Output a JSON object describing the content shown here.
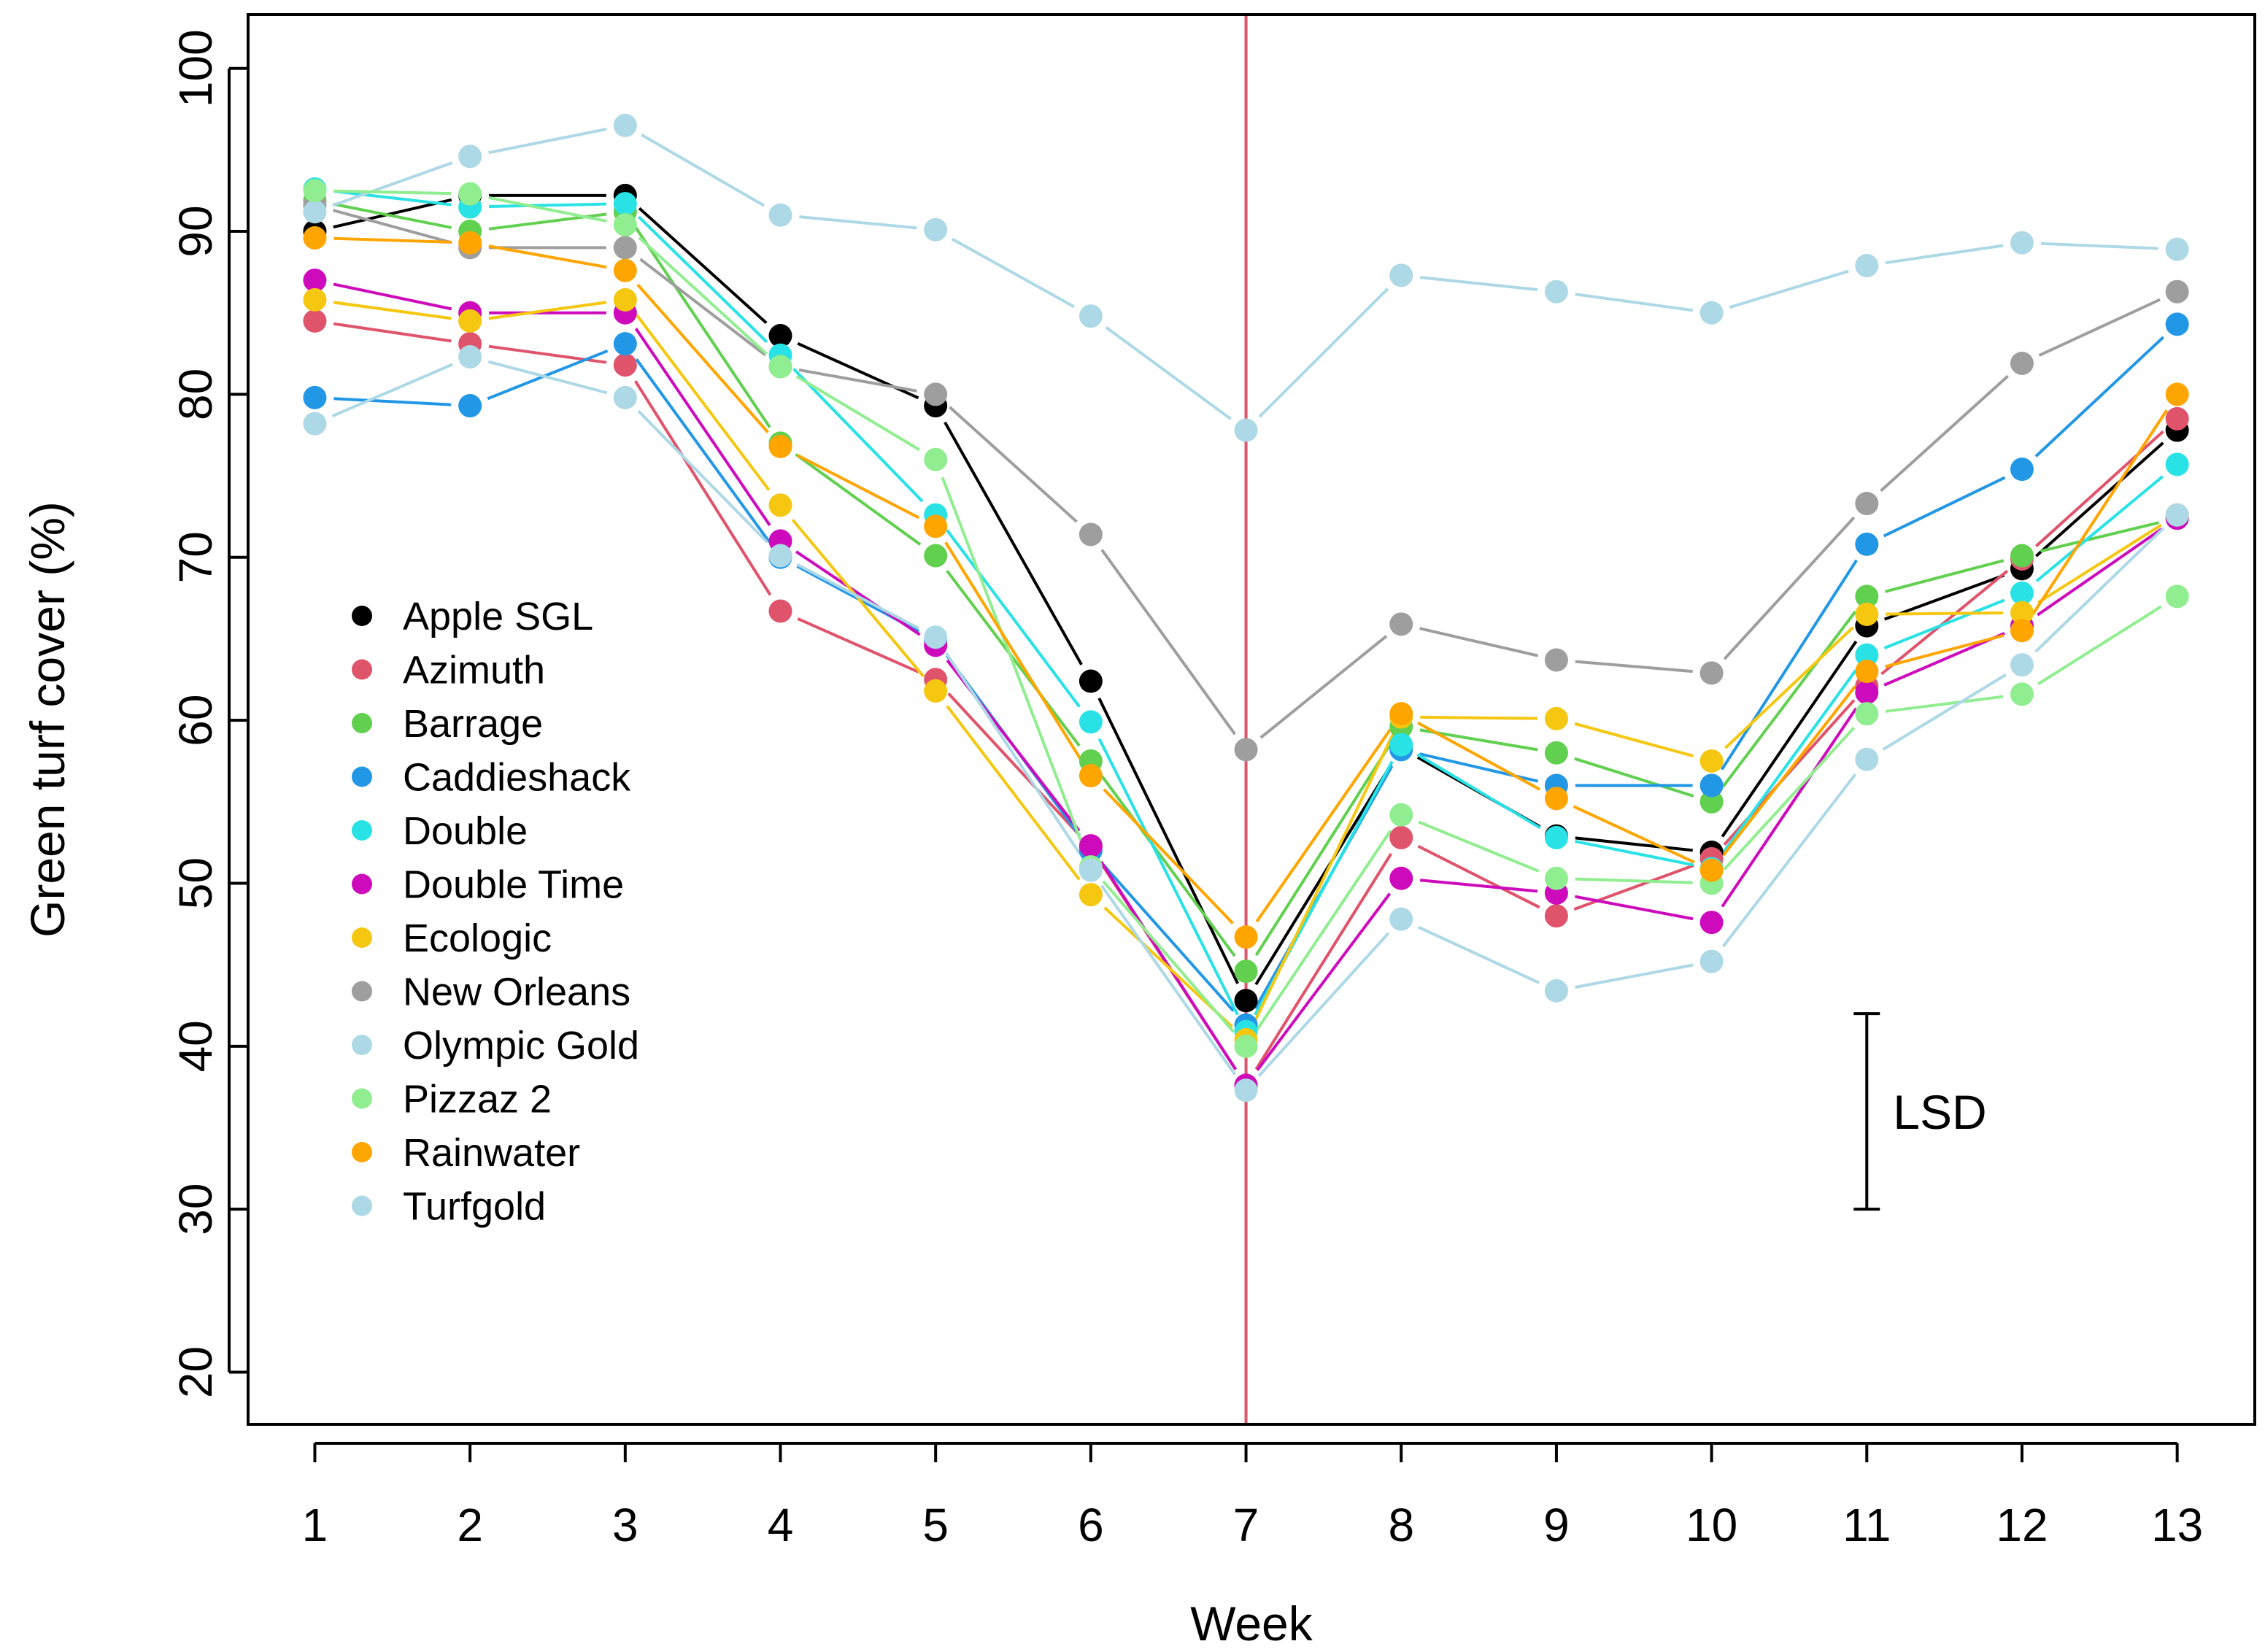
{
  "chart_data": {
    "type": "line",
    "title": "",
    "xlabel": "Week",
    "ylabel": "Green turf cover (%)",
    "x": [
      1,
      2,
      3,
      4,
      5,
      6,
      7,
      8,
      9,
      10,
      11,
      12,
      13
    ],
    "x_tick_labels": [
      "1",
      "2",
      "3",
      "4",
      "5",
      "6",
      "7",
      "8",
      "9",
      "10",
      "11",
      "12",
      "13"
    ],
    "y_ticks": [
      20,
      30,
      40,
      50,
      60,
      70,
      80,
      90,
      100
    ],
    "y_tick_labels": [
      "20",
      "30",
      "40",
      "50",
      "60",
      "70",
      "80",
      "90",
      "100"
    ],
    "xlim": [
      0.57,
      13.5
    ],
    "ylim": [
      16.8,
      103.3
    ],
    "grid": false,
    "legend_position": "left-center",
    "vertical_line": {
      "x": 7,
      "color": "#DF536B"
    },
    "lsd": {
      "label": "LSD",
      "x": 11,
      "y_low": 30,
      "y_high": 42
    },
    "series": [
      {
        "name": "Apple SGL",
        "color": "#000000",
        "values": [
          90.0,
          92.2,
          92.2,
          83.6,
          79.3,
          62.4,
          42.8,
          58.3,
          52.9,
          51.9,
          65.8,
          69.3,
          77.8
        ]
      },
      {
        "name": "Azimuth",
        "color": "#DF536B",
        "values": [
          84.5,
          83.1,
          81.8,
          66.7,
          62.5,
          52.2,
          37.6,
          52.8,
          48.0,
          51.5,
          62.1,
          69.9,
          78.5
        ]
      },
      {
        "name": "Barrage",
        "color": "#61D04F",
        "values": [
          91.9,
          90.0,
          91.2,
          77.0,
          70.1,
          57.5,
          44.6,
          59.6,
          58.0,
          55.0,
          67.6,
          70.1,
          72.4
        ]
      },
      {
        "name": "Caddieshack",
        "color": "#2297E6",
        "values": [
          79.8,
          79.3,
          83.1,
          70.0,
          64.9,
          52.0,
          41.3,
          58.2,
          56.0,
          56.0,
          70.8,
          75.4,
          84.3
        ]
      },
      {
        "name": "Double",
        "color": "#28E2E5",
        "values": [
          92.6,
          91.5,
          91.7,
          82.4,
          72.6,
          59.9,
          40.9,
          58.5,
          52.8,
          50.9,
          64.0,
          67.8,
          75.7
        ]
      },
      {
        "name": "Double Time",
        "color": "#CD0BBC",
        "values": [
          87.0,
          85.0,
          85.0,
          71.0,
          64.6,
          52.3,
          37.6,
          50.3,
          49.4,
          47.6,
          61.7,
          65.8,
          72.4
        ]
      },
      {
        "name": "Ecologic",
        "color": "#F5C710",
        "values": [
          85.8,
          84.5,
          85.8,
          73.2,
          61.8,
          49.3,
          40.4,
          60.2,
          60.1,
          57.5,
          66.5,
          66.6,
          72.6
        ]
      },
      {
        "name": "New Orleans",
        "color": "#9E9E9E",
        "values": [
          91.6,
          89.0,
          89.0,
          81.7,
          80.0,
          71.4,
          58.2,
          65.9,
          63.7,
          62.9,
          73.3,
          81.9,
          86.3
        ]
      },
      {
        "name": "Olympic Gold",
        "color": "#ADD8E6",
        "values": [
          91.2,
          94.6,
          96.5,
          91.0,
          90.1,
          84.8,
          77.8,
          87.3,
          86.3,
          85.0,
          87.9,
          89.3,
          88.9
        ]
      },
      {
        "name": "Pizzaz 2",
        "color": "#90EE90",
        "values": [
          92.5,
          92.3,
          90.4,
          81.7,
          76.0,
          51.0,
          40.0,
          54.2,
          50.3,
          50.0,
          60.4,
          61.6,
          67.6
        ]
      },
      {
        "name": "Rainwater",
        "color": "#FFA500",
        "values": [
          89.6,
          89.3,
          87.6,
          76.8,
          71.9,
          56.6,
          46.7,
          60.4,
          55.2,
          50.8,
          63.0,
          65.5,
          80.0
        ]
      },
      {
        "name": "Turfgold",
        "color": "#ADD8E6",
        "values": [
          78.2,
          82.3,
          79.8,
          70.1,
          65.1,
          50.8,
          37.3,
          47.8,
          43.4,
          45.2,
          57.6,
          63.4,
          72.6
        ]
      }
    ]
  }
}
